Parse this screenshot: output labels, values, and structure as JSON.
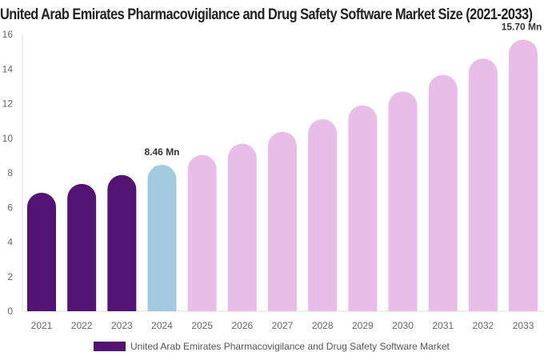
{
  "chart_data": {
    "type": "bar",
    "title": "United Arab Emirates Pharmacovigilance and Drug Safety Software Market Size (2021-2033)",
    "categories": [
      "2021",
      "2022",
      "2023",
      "2024",
      "2025",
      "2026",
      "2027",
      "2028",
      "2029",
      "2030",
      "2031",
      "2032",
      "2033"
    ],
    "series": [
      {
        "name": "United Arab Emirates Pharmacovigilance and Drug Safety Software Market",
        "values": [
          6.85,
          7.36,
          7.87,
          8.46,
          9.03,
          9.68,
          10.37,
          11.1,
          11.9,
          12.7,
          13.66,
          14.6,
          15.7
        ]
      }
    ],
    "data_labels": [
      {
        "category": "2024",
        "text": "8.46 Mn"
      },
      {
        "category": "2033",
        "text": "15.70 Mn"
      }
    ],
    "yticks": [
      0,
      2,
      4,
      6,
      8,
      10,
      12,
      14,
      16
    ],
    "ylim": [
      0,
      16
    ],
    "grid": false,
    "legend": "bottom",
    "colors": {
      "historical": "#531373",
      "current": "#a3cadf",
      "forecast": "#e8bde8"
    }
  }
}
